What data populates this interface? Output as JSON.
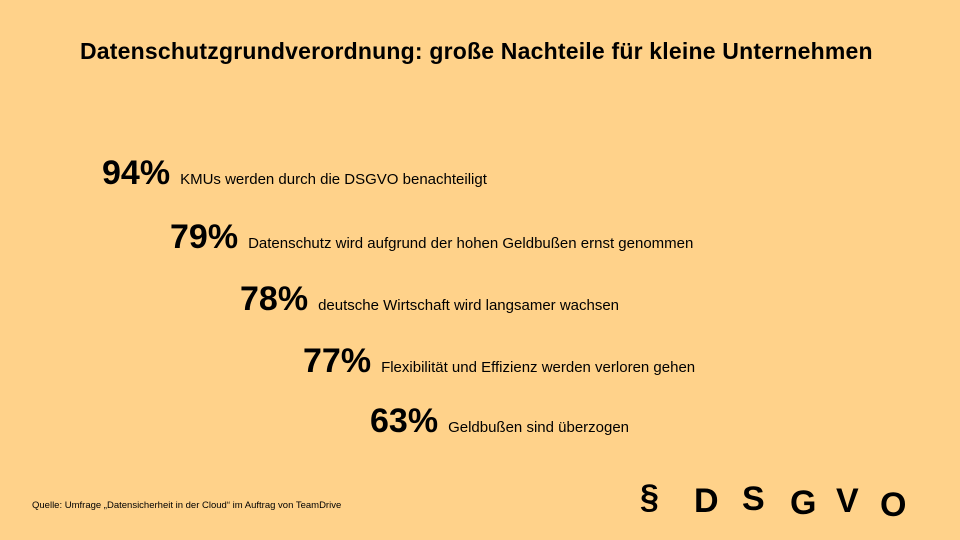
{
  "title": "Datenschutzgrundverordnung: große Nachteile für kleine Unternehmen",
  "stats": [
    {
      "percent": "94%",
      "text": "KMUs werden durch die DSGVO benachteiligt"
    },
    {
      "percent": "79%",
      "text": "Datenschutz wird aufgrund der hohen Geldbußen ernst genommen"
    },
    {
      "percent": "78%",
      "text": "deutsche Wirtschaft wird langsamer wachsen"
    },
    {
      "percent": "77%",
      "text": "Flexibilität und Effizienz werden verloren gehen"
    },
    {
      "percent": "63%",
      "text": "Geldbußen sind überzogen"
    }
  ],
  "source": "Quelle: Umfrage „Datensicherheit in der Cloud“ im Auftrag von TeamDrive",
  "logo": [
    "§",
    "D",
    "S",
    "G",
    "V",
    "O"
  ],
  "colors": {
    "background": "#FFD28A",
    "text": "#000000"
  }
}
